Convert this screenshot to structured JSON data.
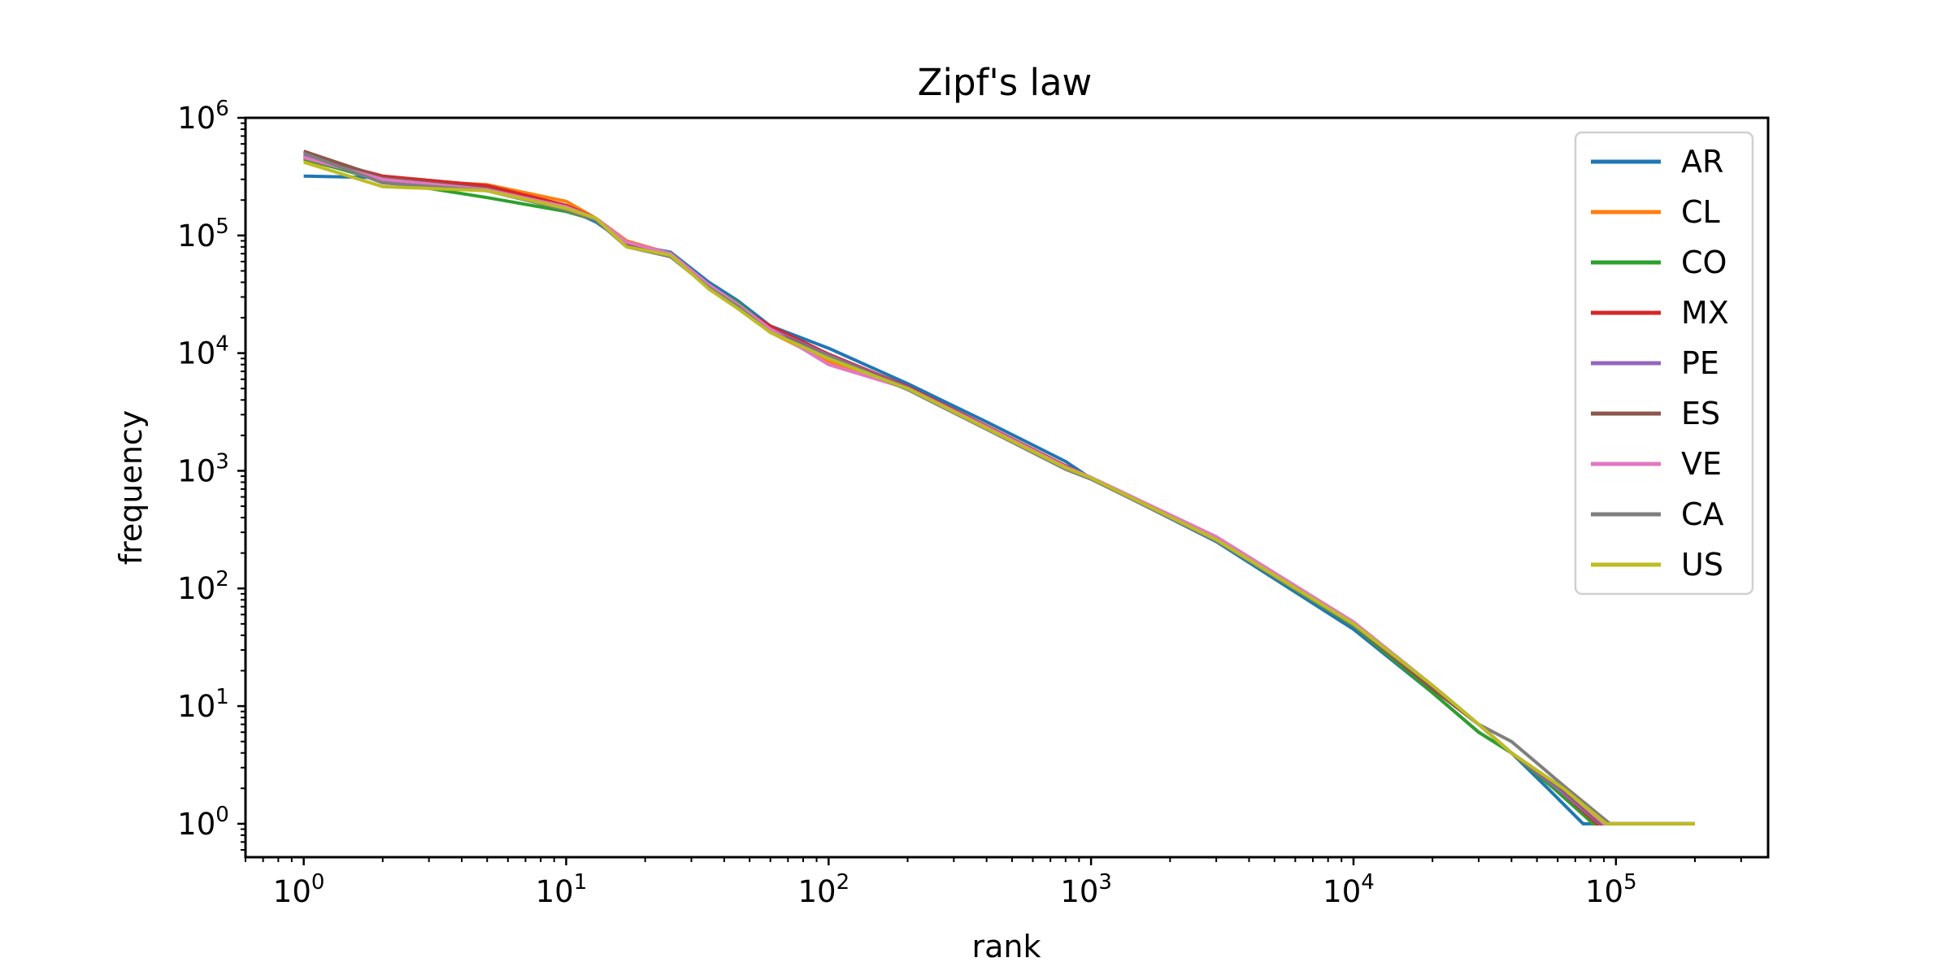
{
  "chart_data": {
    "type": "line",
    "title": "Zipf's law",
    "xlabel": "rank",
    "ylabel": "frequency",
    "xscale": "log",
    "yscale": "log",
    "xlim": [
      0.6,
      380000
    ],
    "ylim": [
      0.52,
      1000000
    ],
    "xticks": [
      {
        "base": "10",
        "exp": "0",
        "value": 1
      },
      {
        "base": "10",
        "exp": "1",
        "value": 10
      },
      {
        "base": "10",
        "exp": "2",
        "value": 100
      },
      {
        "base": "10",
        "exp": "3",
        "value": 1000
      },
      {
        "base": "10",
        "exp": "4",
        "value": 10000
      },
      {
        "base": "10",
        "exp": "5",
        "value": 100000
      }
    ],
    "yticks": [
      {
        "base": "10",
        "exp": "0",
        "value": 1
      },
      {
        "base": "10",
        "exp": "1",
        "value": 10
      },
      {
        "base": "10",
        "exp": "2",
        "value": 100
      },
      {
        "base": "10",
        "exp": "3",
        "value": 1000
      },
      {
        "base": "10",
        "exp": "4",
        "value": 10000
      },
      {
        "base": "10",
        "exp": "5",
        "value": 100000
      },
      {
        "base": "10",
        "exp": "6",
        "value": 1000000
      }
    ],
    "grid": false,
    "legend_position": "top-right",
    "series": [
      {
        "name": "AR",
        "color": "#1f77b4",
        "points": [
          [
            1,
            320000
          ],
          [
            2,
            310000
          ],
          [
            5,
            250000
          ],
          [
            10,
            170000
          ],
          [
            13,
            130000
          ],
          [
            17,
            85000
          ],
          [
            25,
            72000
          ],
          [
            35,
            40000
          ],
          [
            45,
            28000
          ],
          [
            60,
            17000
          ],
          [
            100,
            11000
          ],
          [
            200,
            5500
          ],
          [
            400,
            2600
          ],
          [
            800,
            1200
          ],
          [
            1000,
            860
          ],
          [
            3000,
            250
          ],
          [
            10000,
            45
          ],
          [
            20000,
            13
          ],
          [
            30000,
            6
          ],
          [
            40000,
            4
          ],
          [
            55000,
            2
          ],
          [
            75000,
            1
          ],
          [
            200000,
            1
          ]
        ]
      },
      {
        "name": "CL",
        "color": "#ff7f0e",
        "points": [
          [
            1,
            440000
          ],
          [
            2,
            300000
          ],
          [
            5,
            270000
          ],
          [
            10,
            195000
          ],
          [
            13,
            140000
          ],
          [
            17,
            90000
          ],
          [
            25,
            70000
          ],
          [
            35,
            38000
          ],
          [
            45,
            26000
          ],
          [
            60,
            15000
          ],
          [
            100,
            8500
          ],
          [
            200,
            5000
          ],
          [
            400,
            2300
          ],
          [
            800,
            1050
          ],
          [
            1000,
            870
          ],
          [
            3000,
            265
          ],
          [
            10000,
            50
          ],
          [
            20000,
            14
          ],
          [
            30000,
            7
          ],
          [
            40000,
            4
          ],
          [
            58000,
            2
          ],
          [
            82000,
            1
          ],
          [
            200000,
            1
          ]
        ]
      },
      {
        "name": "CO",
        "color": "#2ca02c",
        "points": [
          [
            1,
            450000
          ],
          [
            2,
            290000
          ],
          [
            5,
            210000
          ],
          [
            10,
            160000
          ],
          [
            13,
            135000
          ],
          [
            17,
            80000
          ],
          [
            25,
            68000
          ],
          [
            35,
            37000
          ],
          [
            45,
            27000
          ],
          [
            60,
            16000
          ],
          [
            100,
            9500
          ],
          [
            200,
            5100
          ],
          [
            400,
            2300
          ],
          [
            800,
            1050
          ],
          [
            1000,
            860
          ],
          [
            3000,
            255
          ],
          [
            10000,
            48
          ],
          [
            20000,
            13
          ],
          [
            30000,
            6
          ],
          [
            40000,
            4
          ],
          [
            58000,
            2
          ],
          [
            82000,
            1
          ],
          [
            200000,
            1
          ]
        ]
      },
      {
        "name": "MX",
        "color": "#d62728",
        "points": [
          [
            1,
            480000
          ],
          [
            2,
            320000
          ],
          [
            5,
            265000
          ],
          [
            10,
            180000
          ],
          [
            13,
            140000
          ],
          [
            17,
            88000
          ],
          [
            25,
            70000
          ],
          [
            35,
            38000
          ],
          [
            45,
            25000
          ],
          [
            60,
            17000
          ],
          [
            100,
            9800
          ],
          [
            200,
            5200
          ],
          [
            400,
            2400
          ],
          [
            800,
            1100
          ],
          [
            1000,
            870
          ],
          [
            3000,
            260
          ],
          [
            10000,
            49
          ],
          [
            20000,
            14
          ],
          [
            30000,
            7
          ],
          [
            40000,
            4
          ],
          [
            60000,
            2
          ],
          [
            85000,
            1
          ],
          [
            200000,
            1
          ]
        ]
      },
      {
        "name": "PE",
        "color": "#9467bd",
        "points": [
          [
            1,
            470000
          ],
          [
            2,
            300000
          ],
          [
            5,
            240000
          ],
          [
            10,
            170000
          ],
          [
            13,
            135000
          ],
          [
            17,
            85000
          ],
          [
            25,
            69000
          ],
          [
            35,
            38000
          ],
          [
            45,
            26000
          ],
          [
            60,
            16000
          ],
          [
            100,
            9600
          ],
          [
            200,
            5100
          ],
          [
            400,
            2350
          ],
          [
            800,
            1080
          ],
          [
            1000,
            865
          ],
          [
            3000,
            260
          ],
          [
            10000,
            49
          ],
          [
            20000,
            14
          ],
          [
            30000,
            7
          ],
          [
            40000,
            4
          ],
          [
            60000,
            2
          ],
          [
            87000,
            1
          ],
          [
            200000,
            1
          ]
        ]
      },
      {
        "name": "ES",
        "color": "#8c564b",
        "points": [
          [
            1,
            520000
          ],
          [
            2,
            310000
          ],
          [
            5,
            250000
          ],
          [
            10,
            165000
          ],
          [
            13,
            135000
          ],
          [
            17,
            82000
          ],
          [
            25,
            66000
          ],
          [
            35,
            37000
          ],
          [
            45,
            25000
          ],
          [
            60,
            15500
          ],
          [
            100,
            9400
          ],
          [
            200,
            5000
          ],
          [
            400,
            2300
          ],
          [
            800,
            1050
          ],
          [
            1000,
            860
          ],
          [
            3000,
            258
          ],
          [
            10000,
            49
          ],
          [
            20000,
            14
          ],
          [
            30000,
            7
          ],
          [
            40000,
            4
          ],
          [
            62000,
            2
          ],
          [
            88000,
            1
          ],
          [
            200000,
            1
          ]
        ]
      },
      {
        "name": "VE",
        "color": "#e377c2",
        "points": [
          [
            1,
            460000
          ],
          [
            2,
            300000
          ],
          [
            5,
            245000
          ],
          [
            10,
            175000
          ],
          [
            13,
            140000
          ],
          [
            17,
            88000
          ],
          [
            25,
            70000
          ],
          [
            35,
            38000
          ],
          [
            45,
            26000
          ],
          [
            60,
            16000
          ],
          [
            100,
            8000
          ],
          [
            200,
            5000
          ],
          [
            400,
            2350
          ],
          [
            800,
            1080
          ],
          [
            1000,
            880
          ],
          [
            3000,
            275
          ],
          [
            10000,
            52
          ],
          [
            20000,
            15
          ],
          [
            30000,
            7
          ],
          [
            40000,
            4
          ],
          [
            63000,
            2
          ],
          [
            90000,
            1
          ],
          [
            200000,
            1
          ]
        ]
      },
      {
        "name": "CA",
        "color": "#7f7f7f",
        "points": [
          [
            1,
            500000
          ],
          [
            2,
            280000
          ],
          [
            5,
            240000
          ],
          [
            10,
            165000
          ],
          [
            13,
            135000
          ],
          [
            17,
            80000
          ],
          [
            25,
            66000
          ],
          [
            35,
            36000
          ],
          [
            45,
            25000
          ],
          [
            60,
            15000
          ],
          [
            100,
            9400
          ],
          [
            200,
            4900
          ],
          [
            400,
            2250
          ],
          [
            800,
            1030
          ],
          [
            1000,
            850
          ],
          [
            3000,
            255
          ],
          [
            10000,
            49
          ],
          [
            20000,
            15
          ],
          [
            30000,
            7
          ],
          [
            40000,
            5
          ],
          [
            65000,
            2
          ],
          [
            95000,
            1
          ],
          [
            200000,
            1
          ]
        ]
      },
      {
        "name": "US",
        "color": "#bcbd22",
        "points": [
          [
            1,
            420000
          ],
          [
            2,
            260000
          ],
          [
            5,
            240000
          ],
          [
            10,
            170000
          ],
          [
            13,
            140000
          ],
          [
            17,
            80000
          ],
          [
            25,
            68000
          ],
          [
            35,
            35000
          ],
          [
            45,
            24000
          ],
          [
            60,
            15000
          ],
          [
            100,
            9000
          ],
          [
            200,
            5000
          ],
          [
            400,
            2300
          ],
          [
            800,
            1060
          ],
          [
            1000,
            870
          ],
          [
            3000,
            260
          ],
          [
            10000,
            50
          ],
          [
            20000,
            15
          ],
          [
            30000,
            7
          ],
          [
            40000,
            4
          ],
          [
            63000,
            2
          ],
          [
            92000,
            1
          ],
          [
            200000,
            1
          ]
        ]
      }
    ]
  }
}
